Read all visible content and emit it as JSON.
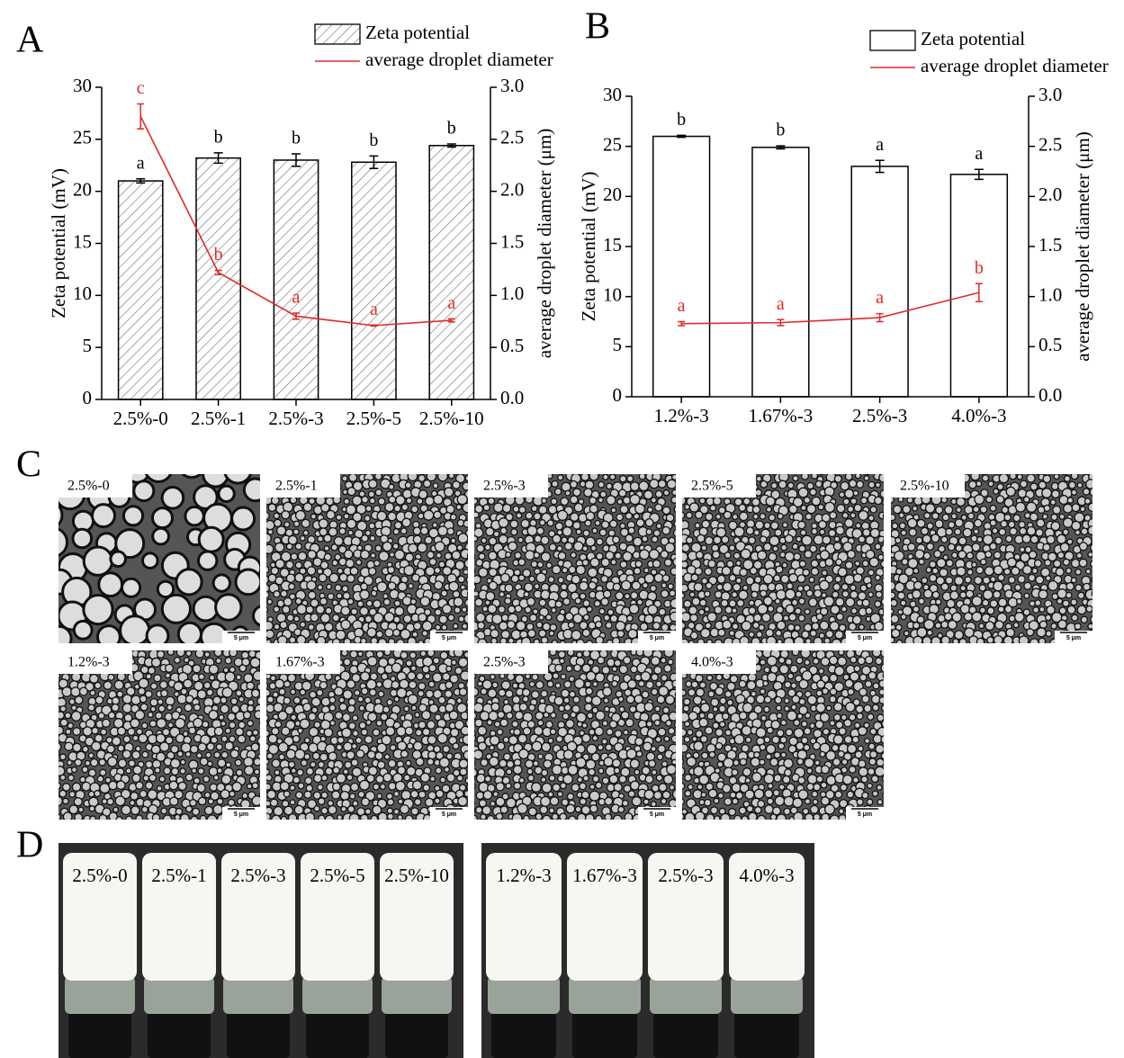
{
  "chart_data": [
    {
      "panel": "A",
      "type": "bar",
      "categories": [
        "2.5%-0",
        "2.5%-1",
        "2.5%-3",
        "2.5%-5",
        "2.5%-10"
      ],
      "series": [
        {
          "name": "Zeta potential",
          "type": "bar",
          "hatch": true,
          "color": "#000000",
          "values": [
            21.0,
            23.2,
            23.0,
            22.8,
            24.4
          ],
          "errors": [
            0.2,
            0.5,
            0.6,
            0.6,
            0.15
          ],
          "letters": [
            "a",
            "b",
            "b",
            "b",
            "b"
          ]
        },
        {
          "name": "average droplet diameter",
          "type": "line",
          "axis": "y2",
          "color": "#e02a2a",
          "values": [
            2.72,
            1.22,
            0.8,
            0.71,
            0.76
          ],
          "errors": [
            0.12,
            0.02,
            0.03,
            0.005,
            0.015
          ],
          "letters": [
            "c",
            "b",
            "a",
            "a",
            "a"
          ]
        }
      ],
      "y_label": "Zeta potential (mV)",
      "y2_label": "average droplet diameter (μm)",
      "ylim": [
        0,
        30
      ],
      "yticks": [
        0,
        5,
        10,
        15,
        20,
        25,
        30
      ],
      "y2lim": [
        0,
        3
      ],
      "y2ticks": [
        {
          "value": 0,
          "label": "0.0"
        },
        0.5,
        {
          "value": 1,
          "label": "1.0"
        },
        1.5,
        {
          "value": 2,
          "label": "2.0"
        },
        2.5,
        {
          "value": 3,
          "label": "3.0"
        }
      ]
    },
    {
      "panel": "B",
      "type": "bar",
      "categories": [
        "1.2%-3",
        "1.67%-3",
        "2.5%-3",
        "4.0%-3"
      ],
      "series": [
        {
          "name": "Zeta potential",
          "type": "bar",
          "hatch": false,
          "color": "#000000",
          "values": [
            26.0,
            24.9,
            23.0,
            22.2
          ],
          "errors": [
            0.1,
            0.15,
            0.6,
            0.5
          ],
          "letters": [
            "b",
            "b",
            "a",
            "a"
          ]
        },
        {
          "name": "average droplet diameter",
          "type": "line",
          "axis": "y2",
          "color": "#e02a2a",
          "values": [
            0.73,
            0.74,
            0.79,
            1.04
          ],
          "errors": [
            0.02,
            0.03,
            0.04,
            0.09
          ],
          "letters": [
            "a",
            "a",
            "a",
            "b"
          ]
        }
      ],
      "y_label": "Zeta potential (mV)",
      "y2_label": "average droplet diameter (μm)",
      "ylim": [
        0,
        30
      ],
      "yticks": [
        0,
        5,
        10,
        15,
        20,
        25,
        30
      ],
      "y2lim": [
        0,
        3
      ],
      "y2ticks": [
        {
          "value": 0,
          "label": "0.0"
        },
        0.5,
        {
          "value": 1,
          "label": "1.0"
        },
        1.5,
        {
          "value": 2,
          "label": "2.0"
        },
        2.5,
        {
          "value": 3,
          "label": "3.0"
        }
      ]
    }
  ],
  "micrographs": {
    "panel": "C",
    "rows": [
      [
        {
          "label": "2.5%-0",
          "scale_bar": "5 μm"
        },
        {
          "label": "2.5%-1",
          "scale_bar": "5 μm"
        },
        {
          "label": "2.5%-3",
          "scale_bar": "5 μm"
        },
        {
          "label": "2.5%-5",
          "scale_bar": "5 μm"
        },
        {
          "label": "2.5%-10",
          "scale_bar": "5 μm"
        }
      ],
      [
        {
          "label": "1.2%-3",
          "scale_bar": "5 μm"
        },
        {
          "label": "1.67%-3",
          "scale_bar": "5 μm"
        },
        {
          "label": "2.5%-3",
          "scale_bar": "5 μm"
        },
        {
          "label": "4.0%-3",
          "scale_bar": "5 μm"
        }
      ]
    ]
  },
  "photos": {
    "panel": "D",
    "groups": [
      {
        "labels": [
          "2.5%-0",
          "2.5%-1",
          "2.5%-3",
          "2.5%-5",
          "2.5%-10"
        ]
      },
      {
        "labels": [
          "1.2%-3",
          "1.67%-3",
          "2.5%-3",
          "4.0%-3"
        ]
      }
    ]
  }
}
